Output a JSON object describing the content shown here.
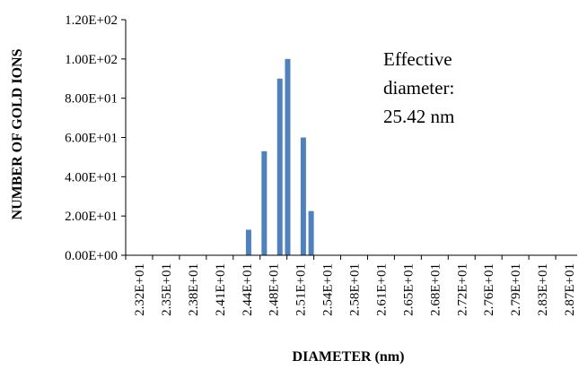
{
  "chart_data": {
    "type": "bar",
    "title": "",
    "xlabel": "DIAMETER (nm)",
    "ylabel": "NUMBER OF GOLD IONS",
    "ylim": [
      0,
      120
    ],
    "yticks": [
      0,
      20,
      40,
      60,
      80,
      100,
      120
    ],
    "ytick_labels": [
      "0.00E+00",
      "2.00E+01",
      "4.00E+01",
      "6.00E+01",
      "8.00E+01",
      "1.00E+02",
      "1.20E+02"
    ],
    "xtick_labels": [
      "2.32E+01",
      "2.35E+01",
      "2.38E+01",
      "2.41E+01",
      "2.44E+01",
      "2.48E+01",
      "2.51E+01",
      "2.54E+01",
      "2.58E+01",
      "2.61E+01",
      "2.65E+01",
      "2.68E+01",
      "2.72E+01",
      "2.76E+01",
      "2.79E+01",
      "2.83E+01",
      "2.87E+01"
    ],
    "bar_color": "#4F81BD",
    "grid": false,
    "legend": "none",
    "bars": [
      {
        "x": 24.6,
        "value": 13
      },
      {
        "x": 24.8,
        "value": 53
      },
      {
        "x": 25.0,
        "value": 90
      },
      {
        "x": 25.1,
        "value": 100
      },
      {
        "x": 25.3,
        "value": 60
      },
      {
        "x": 25.4,
        "value": 22.5
      }
    ],
    "annotation": [
      "Effective",
      "diameter:",
      "25.42 nm"
    ]
  }
}
